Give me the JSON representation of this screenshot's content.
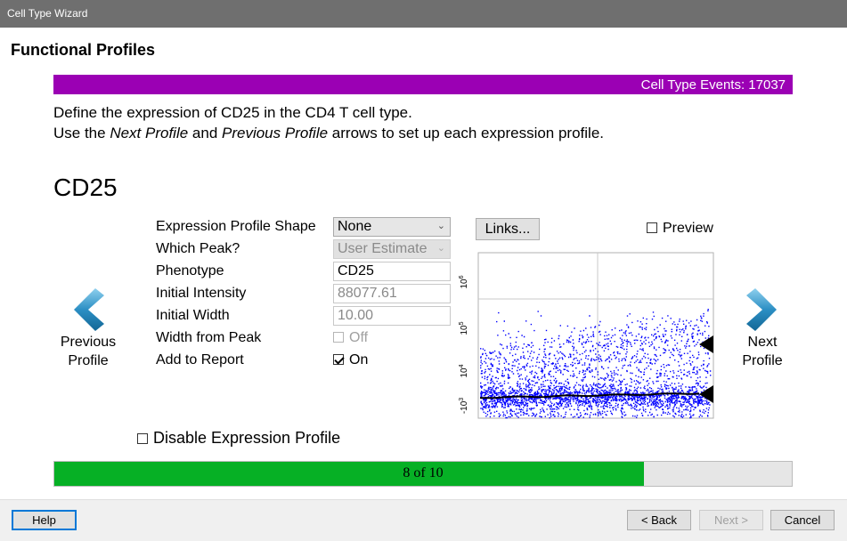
{
  "window": {
    "title": "Cell Type Wizard"
  },
  "page": {
    "title": "Functional Profiles",
    "events_label": "Cell Type Events: 17037",
    "instruction_line1": "Define the expression of CD25 in the CD4 T cell type.",
    "instruction_line2": {
      "part1": "Use the ",
      "next_profile": "Next Profile",
      "part2": " and ",
      "previous_profile": "Previous Profile",
      "part3": " arrows to set up each expression profile."
    },
    "marker": "CD25"
  },
  "nav": {
    "previous": {
      "line1": "Previous",
      "line2": "Profile",
      "icon": "chevron-left-icon"
    },
    "next": {
      "line1": "Next",
      "line2": "Profile",
      "icon": "chevron-right-icon"
    }
  },
  "form": {
    "shape_label": "Expression Profile Shape",
    "shape_value": "None",
    "peak_label": "Which Peak?",
    "peak_value": "User Estimate",
    "phenotype_label": "Phenotype",
    "phenotype_value": "CD25",
    "intensity_label": "Initial Intensity",
    "intensity_value": "88077.61",
    "width_label": "Initial Width",
    "width_value": "10.00",
    "width_from_peak_label": "Width from Peak",
    "width_from_peak_value": "Off",
    "add_to_report_label": "Add to Report",
    "add_to_report_value": "On",
    "add_to_report_checked": true
  },
  "links_button": "Links...",
  "preview": {
    "label": "Preview",
    "checked": false
  },
  "plot": {
    "y_ticks": [
      {
        "base": "10",
        "exp": "6"
      },
      {
        "base": "10",
        "exp": "5"
      },
      {
        "base": "10",
        "exp": "4"
      },
      {
        "base": "-10",
        "exp": "3"
      }
    ],
    "point_color": "#0000ff",
    "trend_color": "#000000"
  },
  "disable_profile": {
    "label": "Disable Expression Profile",
    "checked": false
  },
  "progress": {
    "text": "8 of 10",
    "current": 8,
    "total": 10,
    "fraction": 0.8,
    "color": "#06b025"
  },
  "footer": {
    "help": "Help",
    "back": "< Back",
    "next": "Next >",
    "cancel": "Cancel"
  }
}
